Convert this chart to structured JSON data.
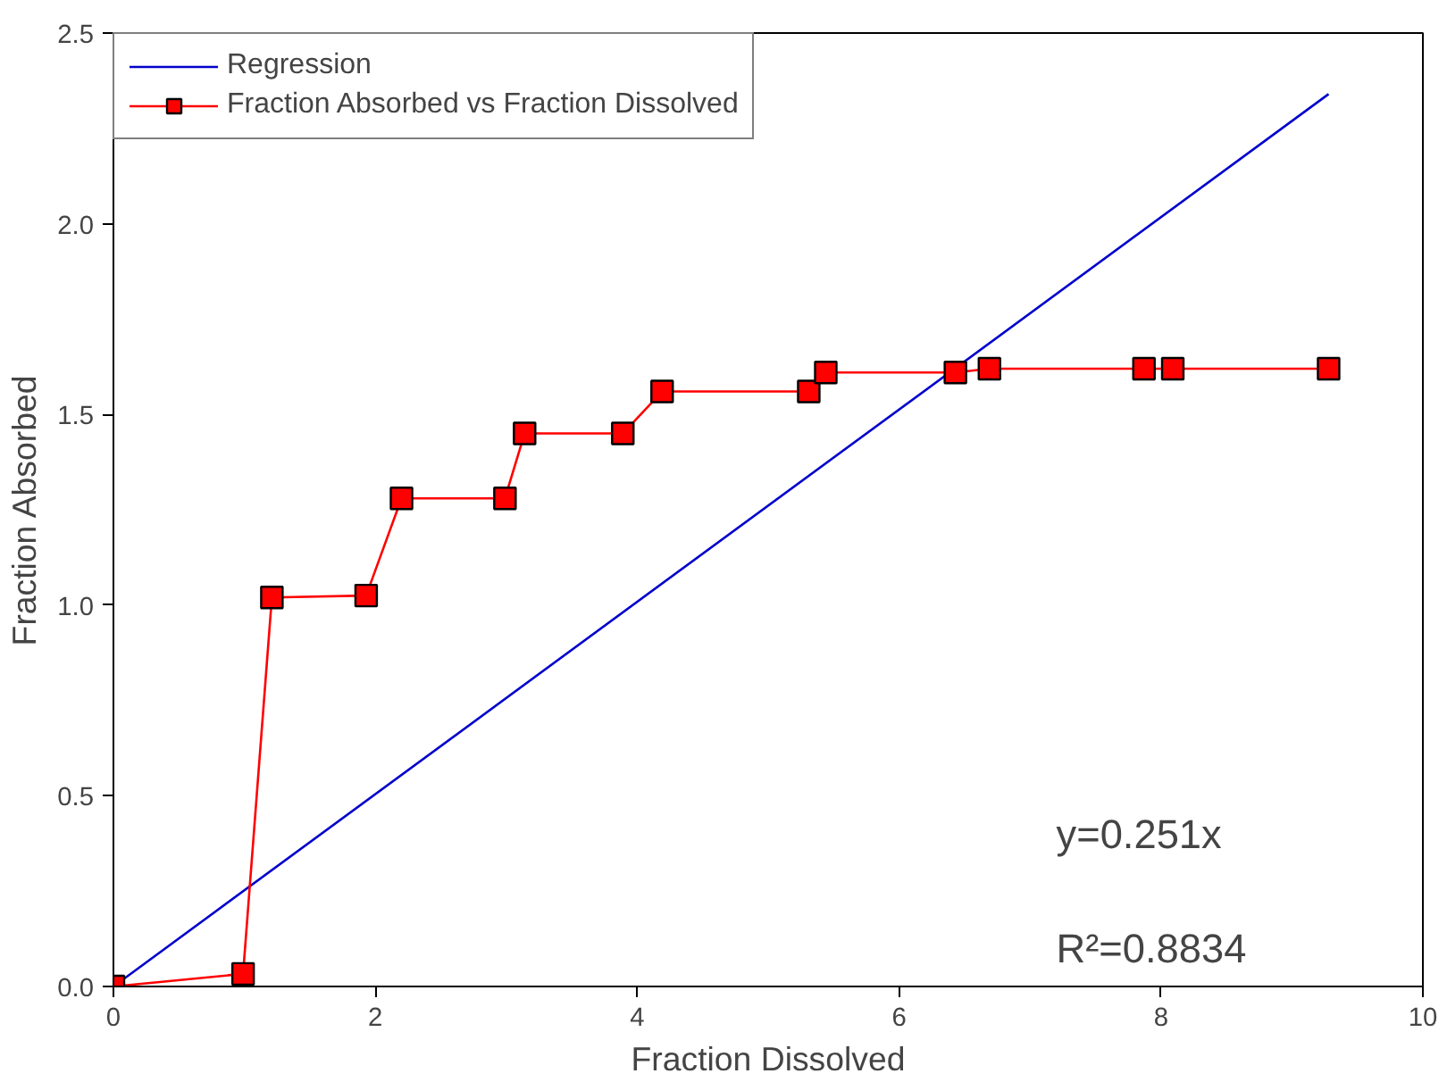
{
  "chart_data": {
    "type": "line",
    "xlabel": "Fraction Dissolved",
    "ylabel": "Fraction Absorbed",
    "xlim": [
      0,
      10
    ],
    "ylim": [
      0,
      2.5
    ],
    "xticks": [
      0,
      2,
      4,
      6,
      8,
      10
    ],
    "yticks": [
      {
        "value": 0,
        "label": "0.0"
      },
      {
        "value": 0.5,
        "label": "0.5"
      },
      {
        "value": 1,
        "label": "1.0"
      },
      {
        "value": 1.5,
        "label": "1.5"
      },
      {
        "value": 2,
        "label": "2.0"
      },
      {
        "value": 2.5,
        "label": "2.5"
      }
    ],
    "grid": false,
    "legend": "top left",
    "series": [
      {
        "name": "Regression",
        "color": "#0000cc",
        "marker": "none",
        "x": [
          0,
          9.28
        ],
        "values": [
          0,
          2.34
        ]
      },
      {
        "name": "Fraction Absorbed vs Fraction Dissolved",
        "color": "#ff0000",
        "marker": "square",
        "x": [
          0,
          0.99,
          1.21,
          1.93,
          2.2,
          2.99,
          3.14,
          3.89,
          4.19,
          5.31,
          5.44,
          6.43,
          6.69,
          7.87,
          8.09,
          9.28
        ],
        "values": [
          0,
          0.033,
          1.02,
          1.025,
          1.28,
          1.28,
          1.45,
          1.45,
          1.56,
          1.56,
          1.61,
          1.61,
          1.62,
          1.62,
          1.62,
          1.62
        ]
      }
    ],
    "annotations": [
      "y=0.251x",
      "R²=0.8834"
    ]
  }
}
